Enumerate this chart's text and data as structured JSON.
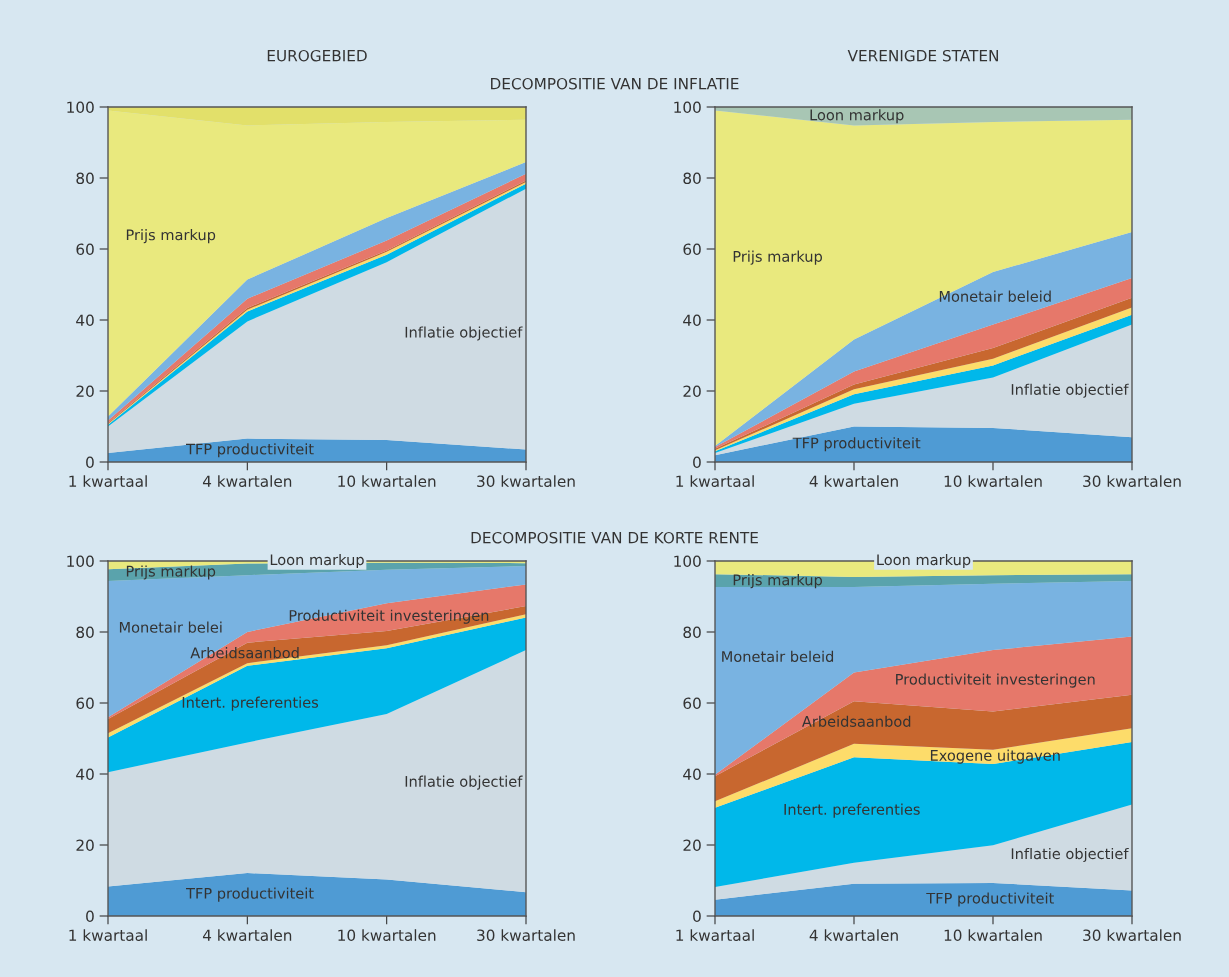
{
  "chart_data": [
    {
      "type": "area",
      "stacked": true,
      "title": "EUROGEBIED",
      "subtitle": "DECOMPOSITIE VAN DE INFLATIE",
      "categories": [
        "1 kwartaal",
        "4 kwartalen",
        "10 kwartalen",
        "30 kwartalen"
      ],
      "ylim": [
        0,
        100
      ],
      "yticks": [
        0,
        20,
        40,
        60,
        80,
        100
      ],
      "grid": false,
      "legend": false,
      "series": [
        {
          "name": "TFP productiviteit",
          "color": "#4f9bd4",
          "values": [
            2.5,
            6.6,
            6.2,
            3.5
          ]
        },
        {
          "name": "Inflatie objectief",
          "color": "#cfdbe3",
          "values": [
            7.5,
            33.0,
            50.1,
            73.5
          ]
        },
        {
          "color": "#00b8ea",
          "values": [
            0.5,
            2.8,
            2.1,
            1.4
          ]
        },
        {
          "color": "#fddc6a",
          "values": [
            0.2,
            0.5,
            0.8,
            0.5
          ]
        },
        {
          "color": "#c8672f",
          "values": [
            0.3,
            0.5,
            0.4,
            0.4
          ]
        },
        {
          "color": "#e6786a",
          "values": [
            0.7,
            2.6,
            2.8,
            1.9
          ]
        },
        {
          "color": "#79b3e1",
          "values": [
            1.1,
            5.4,
            6.3,
            3.3
          ]
        },
        {
          "name": "Prijs markup",
          "color": "#e9e97e",
          "values": [
            86.2,
            43.4,
            27.1,
            11.9
          ]
        },
        {
          "color": "#e2e06a",
          "values": [
            1.0,
            5.2,
            4.2,
            3.6
          ]
        }
      ]
    },
    {
      "type": "area",
      "stacked": true,
      "title": "VERENIGDE STATEN",
      "categories": [
        "1 kwartaal",
        "4 kwartalen",
        "10 kwartalen",
        "30 kwartalen"
      ],
      "ylim": [
        0,
        100
      ],
      "yticks": [
        0,
        20,
        40,
        60,
        80,
        100
      ],
      "grid": false,
      "legend": false,
      "series": [
        {
          "name": "TFP productiviteit",
          "color": "#4f9bd4",
          "values": [
            1.9,
            10.0,
            9.6,
            7.0
          ]
        },
        {
          "name": "Inflatie objectief",
          "color": "#cfdbe3",
          "values": [
            0.6,
            6.4,
            14.2,
            31.7
          ]
        },
        {
          "color": "#00b8ea",
          "values": [
            0.5,
            2.7,
            3.4,
            2.8
          ]
        },
        {
          "color": "#fddc6a",
          "values": [
            0.3,
            1.4,
            1.9,
            2.0
          ]
        },
        {
          "color": "#c8672f",
          "values": [
            0.4,
            1.3,
            3.0,
            2.8
          ]
        },
        {
          "color": "#e6786a",
          "values": [
            0.5,
            3.7,
            6.6,
            5.5
          ]
        },
        {
          "name": "Monetair beleid",
          "color": "#79b3e1",
          "values": [
            0.3,
            9.0,
            14.8,
            13.0
          ]
        },
        {
          "name": "Prijs markup",
          "color": "#e9e97e",
          "values": [
            94.5,
            60.3,
            42.3,
            31.6
          ]
        },
        {
          "name": "Loon markup",
          "color": "#a8c6b4",
          "values": [
            1.0,
            5.2,
            4.2,
            3.6
          ]
        }
      ]
    },
    {
      "type": "area",
      "stacked": true,
      "subtitle": "DECOMPOSITIE VAN DE KORTE RENTE",
      "categories": [
        "1 kwartaal",
        "4 kwartalen",
        "10 kwartalen",
        "30 kwartalen"
      ],
      "ylim": [
        0,
        100
      ],
      "yticks": [
        0,
        20,
        40,
        60,
        80,
        100
      ],
      "grid": false,
      "legend": false,
      "series": [
        {
          "name": "TFP productiviteit",
          "color": "#4f9bd4",
          "values": [
            8.3,
            12.1,
            10.3,
            6.7
          ]
        },
        {
          "name": "Inflatie objectief",
          "color": "#cfdbe3",
          "values": [
            32.2,
            36.8,
            46.6,
            68.2
          ]
        },
        {
          "name": "Intert. preferenties",
          "color": "#00b8ea",
          "values": [
            9.8,
            21.6,
            18.5,
            9.2
          ]
        },
        {
          "color": "#fddc6a",
          "values": [
            1.2,
            0.7,
            0.9,
            0.9
          ]
        },
        {
          "name": "Arbeidsaanbod",
          "color": "#c8672f",
          "values": [
            4.0,
            5.8,
            4.0,
            2.3
          ]
        },
        {
          "name": "Productiviteit investeringen",
          "color": "#e6786a",
          "values": [
            0.5,
            3.0,
            7.8,
            6.1
          ]
        },
        {
          "name": "Monetair belei",
          "color": "#79b3e1",
          "values": [
            38.4,
            16.0,
            9.4,
            5.2
          ]
        },
        {
          "name": "Prijs markup",
          "color": "#5aa3ac",
          "values": [
            3.3,
            3.3,
            2.0,
            0.8
          ]
        },
        {
          "name": "Loon markup",
          "color": "#e9e97e",
          "values": [
            2.3,
            0.7,
            0.5,
            0.6
          ]
        }
      ]
    },
    {
      "type": "area",
      "stacked": true,
      "categories": [
        "1 kwartaal",
        "4 kwartalen",
        "10 kwartalen",
        "30 kwartalen"
      ],
      "ylim": [
        0,
        100
      ],
      "yticks": [
        0,
        20,
        40,
        60,
        80,
        100
      ],
      "grid": false,
      "legend": false,
      "series": [
        {
          "name": "TFP productiviteit",
          "color": "#4f9bd4",
          "values": [
            4.6,
            9.1,
            9.3,
            7.2
          ]
        },
        {
          "name": "Inflatie objectief",
          "color": "#cfdbe3",
          "values": [
            3.6,
            5.9,
            10.6,
            24.2
          ]
        },
        {
          "name": "Intert. preferenties",
          "color": "#00b8ea",
          "values": [
            22.3,
            29.7,
            22.9,
            17.6
          ]
        },
        {
          "name": "Exogene uitgaven",
          "color": "#fddc6a",
          "values": [
            1.8,
            3.8,
            4.0,
            3.9
          ]
        },
        {
          "name": "Arbeidsaanbod",
          "color": "#c8672f",
          "values": [
            7.1,
            12.0,
            10.8,
            9.4
          ]
        },
        {
          "name": "Productiviteit investeringen",
          "color": "#e6786a",
          "values": [
            0.4,
            8.1,
            17.3,
            16.4
          ]
        },
        {
          "name": "Monetair beleid",
          "color": "#79b3e1",
          "values": [
            52.9,
            24.1,
            18.7,
            15.7
          ]
        },
        {
          "name": "Prijs markup",
          "color": "#5aa3ac",
          "values": [
            3.6,
            2.8,
            2.4,
            1.9
          ]
        },
        {
          "name": "Loon markup",
          "color": "#e9e97e",
          "values": [
            3.7,
            4.5,
            4.0,
            3.7
          ]
        }
      ]
    }
  ]
}
